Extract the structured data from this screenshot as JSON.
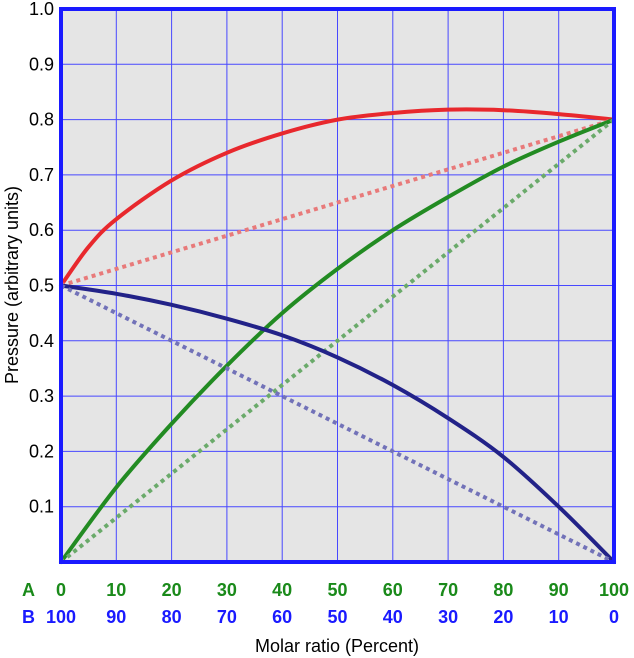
{
  "chart_data": {
    "type": "line",
    "ylabel": "Pressure (arbitrary units)",
    "xlabel": "Molar ratio (Percent)",
    "xlim": [
      0,
      100
    ],
    "ylim": [
      0,
      1.0
    ],
    "y_ticks": [
      "0.1",
      "0.2",
      "0.3",
      "0.4",
      "0.5",
      "0.6",
      "0.7",
      "0.8",
      "0.9",
      "1.0"
    ],
    "x_tick_values": [
      0,
      10,
      20,
      30,
      40,
      50,
      60,
      70,
      80,
      90,
      100
    ],
    "x_axis_rows": [
      {
        "label": "A",
        "color": "#1a8a1a",
        "ticks": [
          "0",
          "10",
          "20",
          "30",
          "40",
          "50",
          "60",
          "70",
          "80",
          "90",
          "100"
        ]
      },
      {
        "label": "B",
        "color": "#1a1aff",
        "ticks": [
          "100",
          "90",
          "80",
          "70",
          "60",
          "50",
          "40",
          "30",
          "20",
          "10",
          "0"
        ]
      }
    ],
    "grid": true,
    "plot_background": "#e5e5e5",
    "grid_color": "#4848ff",
    "frame_color": "#1a1aff",
    "series": [
      {
        "style": "solid",
        "color": "#e8282d",
        "x": [
          0,
          5,
          10,
          20,
          30,
          40,
          50,
          60,
          70,
          80,
          90,
          100
        ],
        "y": [
          0.5,
          0.57,
          0.62,
          0.69,
          0.74,
          0.775,
          0.8,
          0.812,
          0.818,
          0.817,
          0.81,
          0.8
        ]
      },
      {
        "style": "dotted",
        "color": "#e87a7a",
        "x": [
          0,
          100
        ],
        "y": [
          0.5,
          0.8
        ]
      },
      {
        "style": "solid",
        "color": "#228b22",
        "x": [
          0,
          10,
          20,
          30,
          40,
          50,
          60,
          70,
          80,
          90,
          100
        ],
        "y": [
          0.0,
          0.135,
          0.25,
          0.355,
          0.45,
          0.53,
          0.6,
          0.66,
          0.715,
          0.76,
          0.8
        ]
      },
      {
        "style": "dotted",
        "color": "#6aaa6a",
        "x": [
          0,
          100
        ],
        "y": [
          0.0,
          0.8
        ]
      },
      {
        "style": "solid",
        "color": "#222288",
        "x": [
          0,
          10,
          20,
          30,
          40,
          50,
          60,
          70,
          80,
          90,
          100
        ],
        "y": [
          0.5,
          0.485,
          0.465,
          0.44,
          0.41,
          0.37,
          0.32,
          0.26,
          0.19,
          0.1,
          0.0
        ]
      },
      {
        "style": "dotted",
        "color": "#7272b8",
        "x": [
          0,
          100
        ],
        "y": [
          0.5,
          0.0
        ]
      }
    ]
  }
}
